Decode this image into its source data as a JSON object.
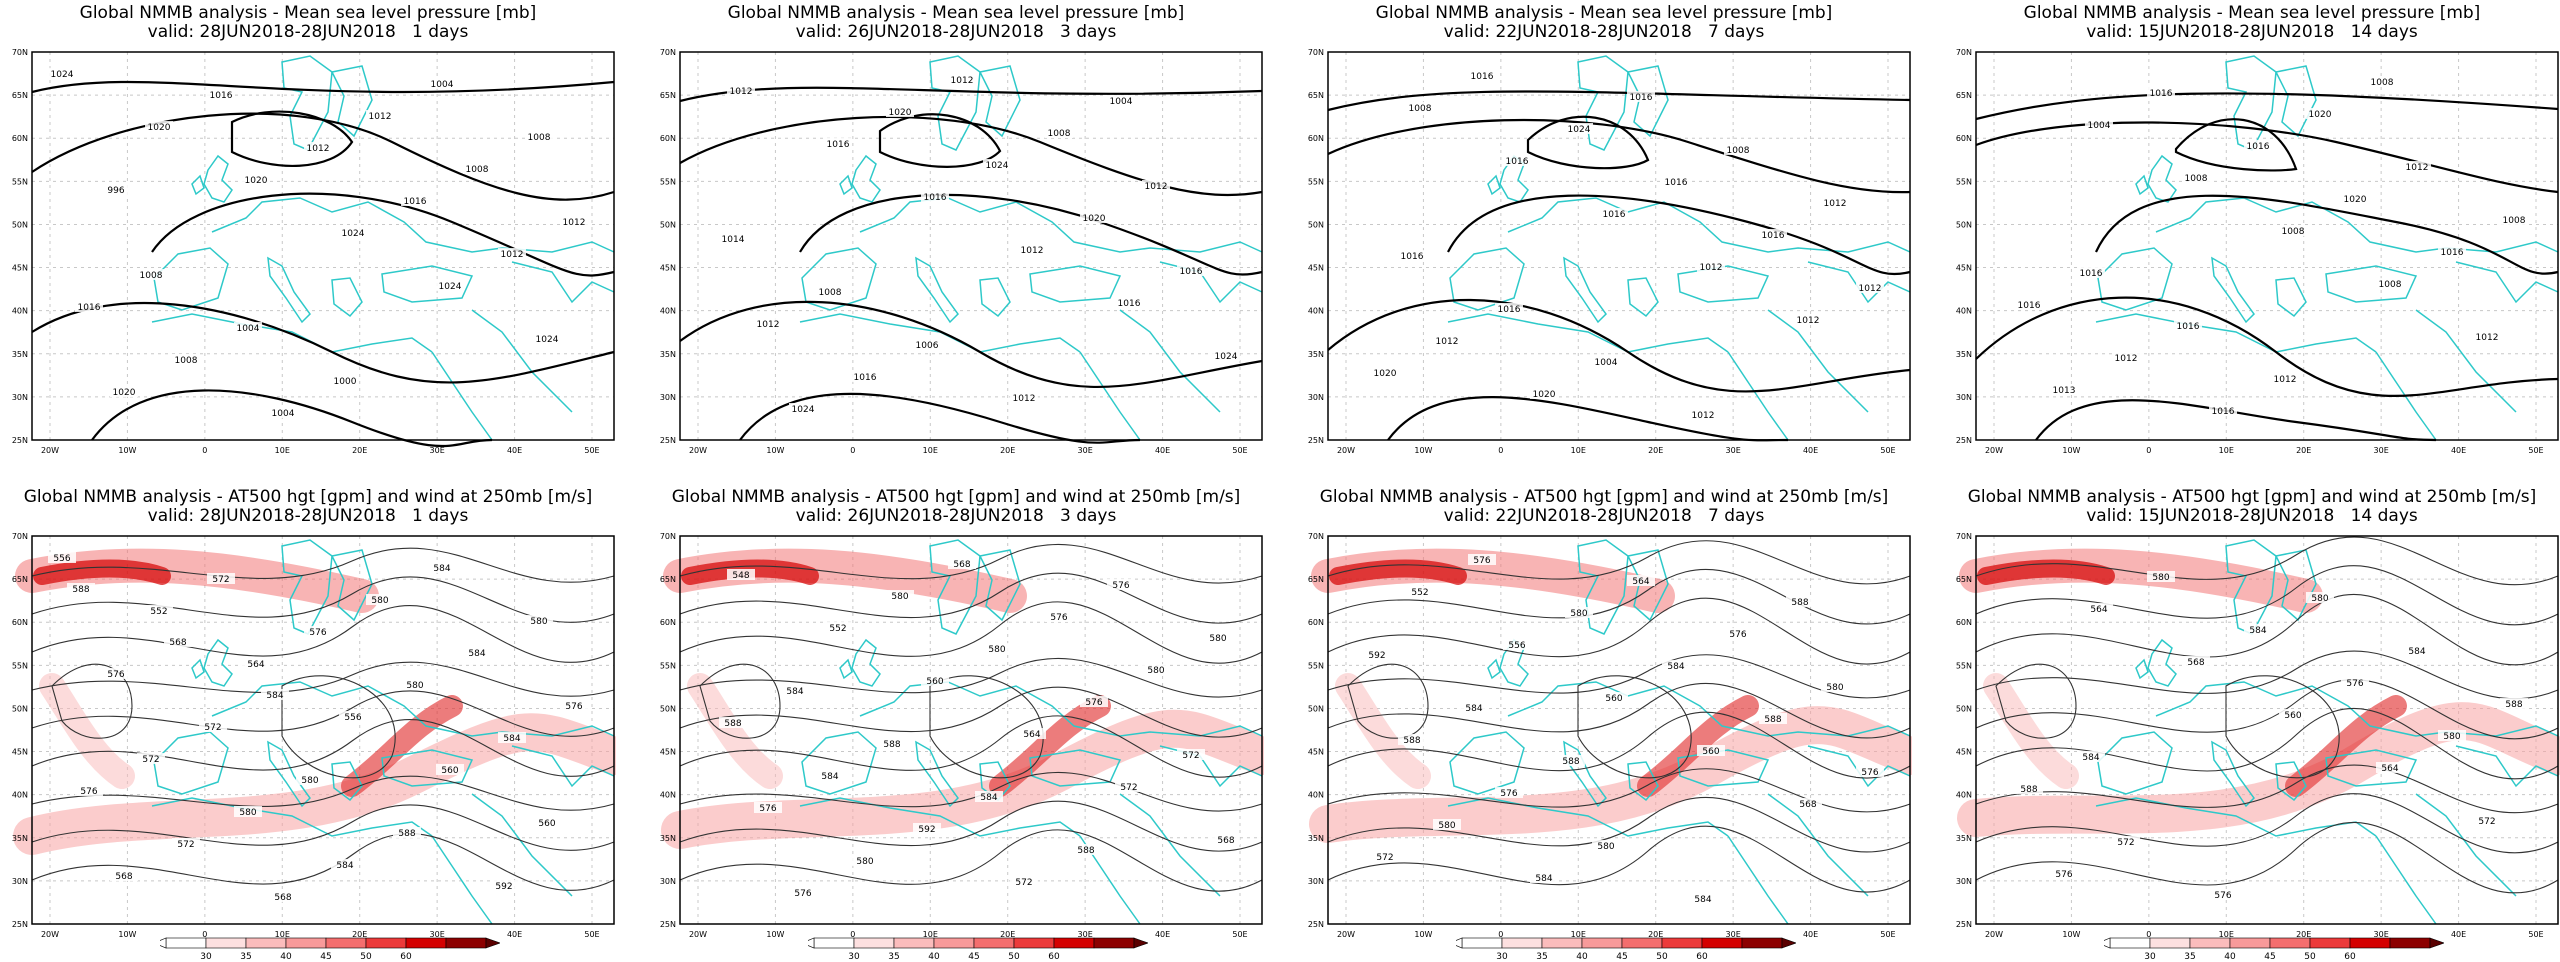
{
  "panels": [
    {
      "row": "mslp",
      "title": "Global NMMB analysis - Mean sea level pressure [mb]",
      "valid": "valid: 28JUN2018-28JUN2018   1 days"
    },
    {
      "row": "mslp",
      "title": "Global NMMB analysis - Mean sea level pressure [mb]",
      "valid": "valid: 26JUN2018-28JUN2018   3 days"
    },
    {
      "row": "mslp",
      "title": "Global NMMB analysis - Mean sea level pressure [mb]",
      "valid": "valid: 22JUN2018-28JUN2018   7 days"
    },
    {
      "row": "mslp",
      "title": "Global NMMB analysis - Mean sea level pressure [mb]",
      "valid": "valid: 15JUN2018-28JUN2018   14 days"
    },
    {
      "row": "z500",
      "title": "Global NMMB analysis - AT500 hgt [gpm] and wind at 250mb [m/s]",
      "valid": "valid: 28JUN2018-28JUN2018   1 days"
    },
    {
      "row": "z500",
      "title": "Global NMMB analysis - AT500 hgt [gpm] and wind at 250mb [m/s]",
      "valid": "valid: 26JUN2018-28JUN2018   3 days"
    },
    {
      "row": "z500",
      "title": "Global NMMB analysis - AT500 hgt [gpm] and wind at 250mb [m/s]",
      "valid": "valid: 22JUN2018-28JUN2018   7 days"
    },
    {
      "row": "z500",
      "title": "Global NMMB analysis - AT500 hgt [gpm] and wind at 250mb [m/s]",
      "valid": "valid: 15JUN2018-28JUN2018   14 days"
    }
  ],
  "axes": {
    "lon_labels": [
      "20W",
      "10W",
      "0",
      "10E",
      "20E",
      "30E",
      "40E",
      "50E"
    ],
    "lat_labels": [
      "70N",
      "65N",
      "60N",
      "55N",
      "50N",
      "45N",
      "40N",
      "35N",
      "30N",
      "25N"
    ]
  },
  "colorbar": {
    "ticks": [
      "30",
      "35",
      "40",
      "45",
      "50",
      "60"
    ],
    "colors": [
      "#ffffff",
      "#fde0e0",
      "#fbbcbc",
      "#f89a9a",
      "#f46e6e",
      "#ec3a3a",
      "#d40000",
      "#8c0000"
    ]
  },
  "contour_labels": {
    "mslp": [
      [
        "1024",
        "1020",
        "1020",
        "1024",
        "1024",
        "1024",
        "1020",
        "1016",
        "1012",
        "1016",
        "1012",
        "1016",
        "1008",
        "1004",
        "1012",
        "1008",
        "1012",
        "1008",
        "1004",
        "1000",
        "1004",
        "1008",
        "996"
      ],
      [
        "1012",
        "1016",
        "1016",
        "1012",
        "1016",
        "1024",
        "1024",
        "1020",
        "1024",
        "1020",
        "1016",
        "1012",
        "1016",
        "1012",
        "1008",
        "1012",
        "1014",
        "1008",
        "1006",
        "1012",
        "1004"
      ],
      [
        "1008",
        "1016",
        "1016",
        "1012",
        "1012",
        "1020",
        "1016",
        "1024",
        "1016",
        "1016",
        "1012",
        "1012",
        "1020",
        "1016",
        "1008",
        "1012",
        "1016",
        "1016",
        "1004",
        "1012"
      ],
      [
        "1004",
        "1008",
        "1008",
        "1008",
        "1012",
        "1013",
        "1016",
        "1016",
        "1020",
        "1016",
        "1016",
        "1012",
        "1016",
        "1020",
        "1012",
        "1008",
        "1016",
        "1016",
        "1012",
        "1008"
      ]
    ],
    "z500": [
      [
        "556",
        "552",
        "564",
        "556",
        "560",
        "560",
        "568",
        "572",
        "576",
        "580",
        "584",
        "576",
        "572",
        "568",
        "580",
        "584",
        "576",
        "572",
        "580",
        "584",
        "584",
        "580",
        "576",
        "572",
        "580",
        "588",
        "592",
        "588",
        "568",
        "584"
      ],
      [
        "548",
        "552",
        "560",
        "564",
        "572",
        "568",
        "576",
        "580",
        "580",
        "576",
        "572",
        "576",
        "580",
        "568",
        "576",
        "580",
        "588",
        "584",
        "592",
        "572",
        "576",
        "580",
        "584",
        "588",
        "584",
        "588"
      ],
      [
        "552",
        "556",
        "560",
        "560",
        "568",
        "572",
        "576",
        "580",
        "584",
        "588",
        "576",
        "580",
        "584",
        "564",
        "576",
        "580",
        "588",
        "576",
        "580",
        "584",
        "588",
        "592",
        "584",
        "588"
      ],
      [
        "564",
        "568",
        "560",
        "564",
        "572",
        "576",
        "580",
        "584",
        "576",
        "580",
        "588",
        "572",
        "576",
        "580",
        "584",
        "588",
        "584"
      ]
    ]
  }
}
